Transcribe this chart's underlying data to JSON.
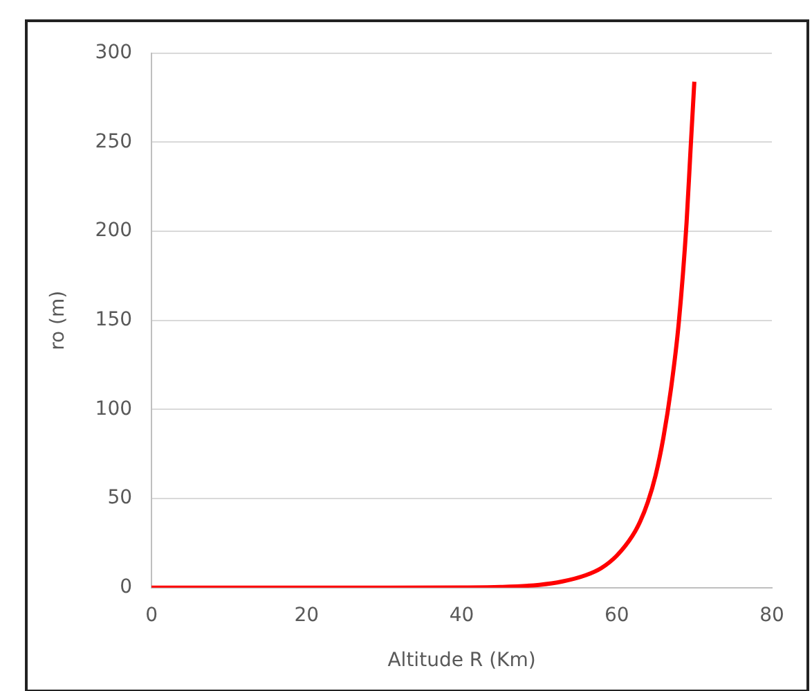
{
  "chart_data": {
    "type": "line",
    "xlabel": "Altitude R (Km)",
    "ylabel": "ro (m)",
    "x": [
      0,
      10,
      20,
      30,
      40,
      45,
      50,
      53,
      56,
      58,
      60,
      62,
      63,
      64,
      65,
      66,
      67,
      68,
      69,
      69.5,
      70
    ],
    "series": [
      {
        "color": "#ff0000",
        "values": [
          0,
          0,
          0,
          0,
          0.1,
          0.4,
          1.6,
          3.5,
          7,
          11,
          18,
          29,
          37,
          48,
          63,
          84,
          112,
          149,
          205,
          245,
          284
        ]
      }
    ],
    "xlim": [
      0,
      80
    ],
    "xticks": [
      0,
      20,
      40,
      60,
      80
    ],
    "ylim": [
      0,
      300
    ],
    "yticks": [
      0,
      50,
      100,
      150,
      200,
      250,
      300
    ],
    "grid": "y",
    "legend": false,
    "marker": "none",
    "line_style": "solid"
  }
}
